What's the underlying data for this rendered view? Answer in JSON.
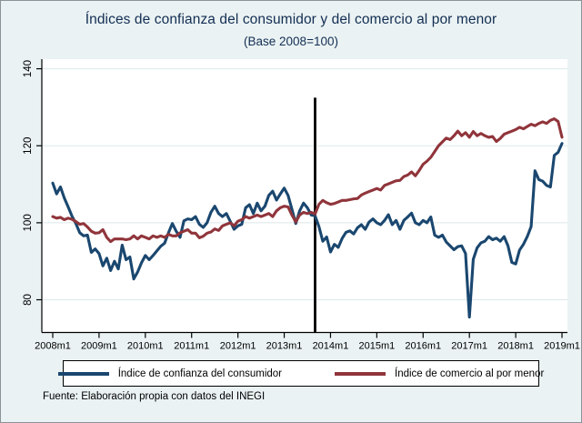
{
  "header": {
    "title": "Índices de confianza del consumidor y del comercio al por menor",
    "subtitle": "(Base 2008=100)"
  },
  "source_note": "Fuente: Elaboración propia con datos del INEGI",
  "colors": {
    "background": "#eaf2f3",
    "plot_background": "#ffffff",
    "gridline": "#dce8eb",
    "axis": "#000000",
    "title_text": "#132e53",
    "event_line": "#000000",
    "consumer_series": "#1a476f",
    "retail_series": "#90353b"
  },
  "chart_data": {
    "type": "line",
    "title": "Índices de confianza del consumidor y del comercio al por menor",
    "subtitle": "(Base 2008=100)",
    "xlabel": "",
    "ylabel": "",
    "x_unit": "month",
    "x_start": "2008m1",
    "x_end": "2019m1",
    "n_points": 133,
    "x_tick_every_months": 12,
    "x_tick_labels": [
      "2008m1",
      "2009m1",
      "2010m1",
      "2011m1",
      "2012m1",
      "2013m1",
      "2014m1",
      "2015m1",
      "2016m1",
      "2017m1",
      "2018m1",
      "2019m1"
    ],
    "y_ticks": [
      80,
      100,
      120,
      140
    ],
    "ylim": [
      71.5,
      142.5
    ],
    "grid": true,
    "legend_position": "bottom",
    "event_line": {
      "x_label": "2013m9",
      "x_month_index": 68,
      "top_value": 132.5,
      "color": "#000000"
    },
    "series": [
      {
        "name": "Índice de confianza del consumidor",
        "color": "#1a476f",
        "values": [
          110.3,
          107.5,
          109.3,
          106.4,
          104.1,
          101.7,
          99.8,
          97.4,
          96.6,
          96.8,
          92.3,
          93.2,
          92.0,
          88.8,
          90.8,
          87.6,
          90.0,
          88.0,
          94.2,
          90.4,
          91.1,
          85.4,
          87.2,
          89.6,
          91.5,
          90.4,
          91.5,
          92.7,
          93.9,
          94.7,
          97.4,
          99.8,
          97.8,
          96.2,
          100.5,
          101.0,
          100.8,
          101.6,
          99.6,
          98.8,
          100.0,
          102.7,
          104.3,
          102.4,
          101.6,
          102.4,
          100.4,
          98.3,
          99.2,
          99.6,
          103.9,
          104.7,
          102.4,
          105.1,
          103.1,
          104.3,
          107.1,
          108.2,
          105.9,
          107.5,
          109.0,
          107.1,
          103.5,
          99.8,
          103.1,
          105.1,
          103.9,
          102.0,
          101.8,
          99.0,
          95.2,
          96.3,
          92.4,
          94.4,
          93.6,
          95.9,
          97.5,
          97.9,
          97.1,
          98.7,
          99.5,
          98.3,
          100.2,
          101.0,
          100.0,
          99.5,
          100.6,
          102.1,
          99.5,
          100.6,
          98.3,
          100.6,
          101.5,
          102.5,
          100.0,
          99.5,
          100.6,
          100.0,
          101.5,
          96.8,
          96.2,
          96.8,
          95.0,
          94.0,
          93.0,
          93.8,
          94.0,
          92.0,
          75.5,
          90.5,
          93.5,
          94.8,
          95.2,
          96.4,
          95.6,
          96.0,
          95.2,
          96.4,
          94.0,
          89.7,
          89.3,
          92.9,
          94.4,
          96.4,
          99.0,
          113.5,
          111.2,
          110.8,
          109.7,
          109.3,
          117.5,
          118.3,
          120.6
        ]
      },
      {
        "name": "Índice de comercio al por menor",
        "color": "#90353b",
        "values": [
          101.6,
          101.2,
          101.4,
          100.8,
          101.2,
          100.9,
          100.3,
          99.6,
          99.8,
          98.9,
          97.8,
          97.3,
          97.4,
          98.2,
          96.2,
          95.1,
          95.8,
          95.8,
          95.8,
          95.6,
          95.8,
          96.6,
          95.8,
          96.6,
          96.2,
          95.8,
          96.6,
          96.2,
          96.6,
          96.2,
          97.0,
          96.6,
          96.6,
          97.4,
          97.8,
          98.2,
          97.3,
          97.3,
          96.1,
          96.5,
          97.3,
          97.6,
          98.4,
          98.0,
          99.2,
          99.6,
          100.0,
          99.2,
          100.4,
          100.8,
          101.6,
          101.2,
          101.6,
          102.0,
          101.6,
          102.0,
          102.4,
          101.6,
          103.1,
          103.9,
          104.3,
          104.1,
          102.0,
          100.2,
          102.0,
          102.7,
          102.4,
          102.7,
          102.3,
          104.8,
          105.8,
          105.2,
          104.8,
          105.0,
          105.4,
          105.8,
          105.8,
          106.0,
          106.2,
          106.3,
          107.2,
          107.7,
          108.1,
          108.5,
          108.9,
          108.5,
          109.7,
          110.1,
          110.5,
          110.9,
          111.0,
          112.0,
          112.4,
          113.2,
          112.2,
          113.6,
          115.2,
          116.0,
          117.0,
          118.5,
          120.0,
          121.0,
          122.0,
          121.6,
          122.6,
          123.8,
          122.6,
          123.4,
          122.2,
          123.7,
          122.6,
          123.2,
          122.6,
          122.2,
          122.4,
          121.1,
          121.9,
          123.0,
          123.4,
          123.8,
          124.2,
          124.8,
          124.4,
          125.0,
          125.6,
          125.2,
          125.8,
          126.2,
          125.8,
          126.6,
          127.0,
          126.3,
          122.2
        ]
      }
    ]
  }
}
